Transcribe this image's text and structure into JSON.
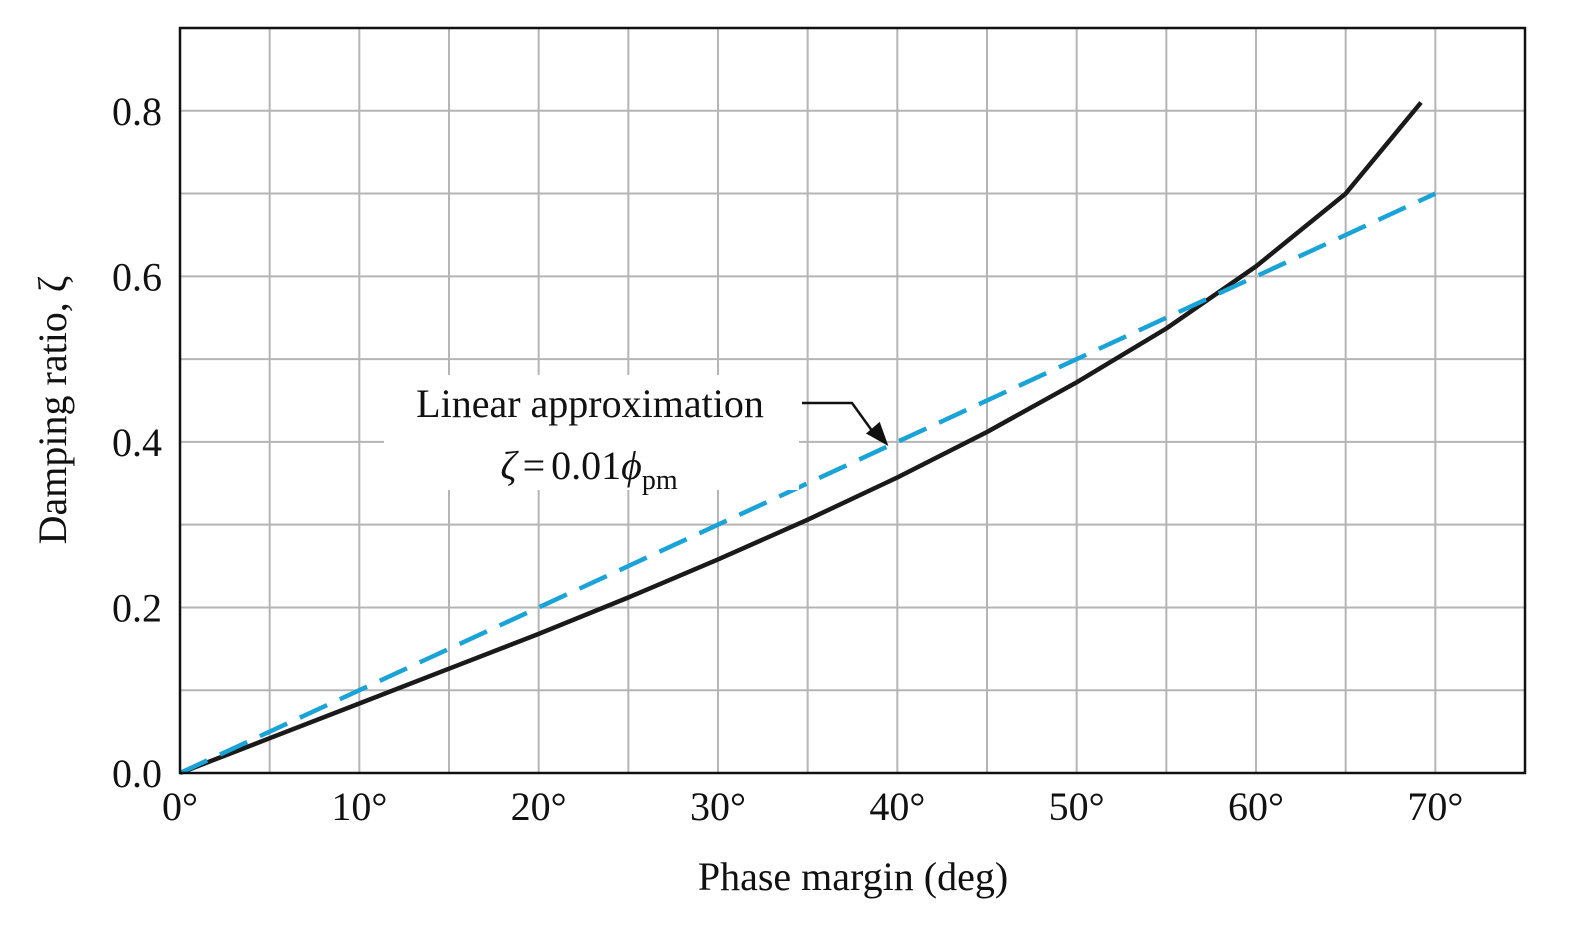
{
  "chart_data": {
    "type": "line",
    "title": "",
    "xlabel": "Phase margin (deg)",
    "ylabel": "Damping ratio, ζ",
    "xlim": [
      0,
      75
    ],
    "ylim": [
      0,
      0.9
    ],
    "grid": true,
    "x_ticks": [
      0,
      10,
      20,
      30,
      40,
      50,
      60,
      70
    ],
    "x_tick_labels": [
      "0°",
      "10°",
      "20°",
      "30°",
      "40°",
      "50°",
      "60°",
      "70°"
    ],
    "y_ticks": [
      0,
      0.2,
      0.4,
      0.6,
      0.8
    ],
    "y_tick_labels": [
      "0.0",
      "0.2",
      "0.4",
      "0.6",
      "0.8"
    ],
    "series": [
      {
        "style": "solid",
        "color": "#1a1a1a",
        "x": [
          0,
          5,
          10,
          15,
          20,
          25,
          30,
          35,
          40,
          45,
          50,
          55,
          60,
          65,
          69.2
        ],
        "y": [
          0,
          0.042,
          0.084,
          0.126,
          0.168,
          0.212,
          0.258,
          0.306,
          0.357,
          0.412,
          0.472,
          0.537,
          0.612,
          0.7,
          0.81
        ]
      },
      {
        "style": "dashed",
        "color": "#1aa3d6",
        "x": [
          0,
          70
        ],
        "y": [
          0,
          0.7
        ]
      }
    ],
    "annotation": {
      "line1": "Linear approximation",
      "formula_lhs": "ζ",
      "formula_eq": "=",
      "formula_coef": "0.01",
      "formula_var": "ϕ",
      "formula_sub": "pm",
      "arrow_target": [
        39.5,
        0.395
      ]
    }
  }
}
